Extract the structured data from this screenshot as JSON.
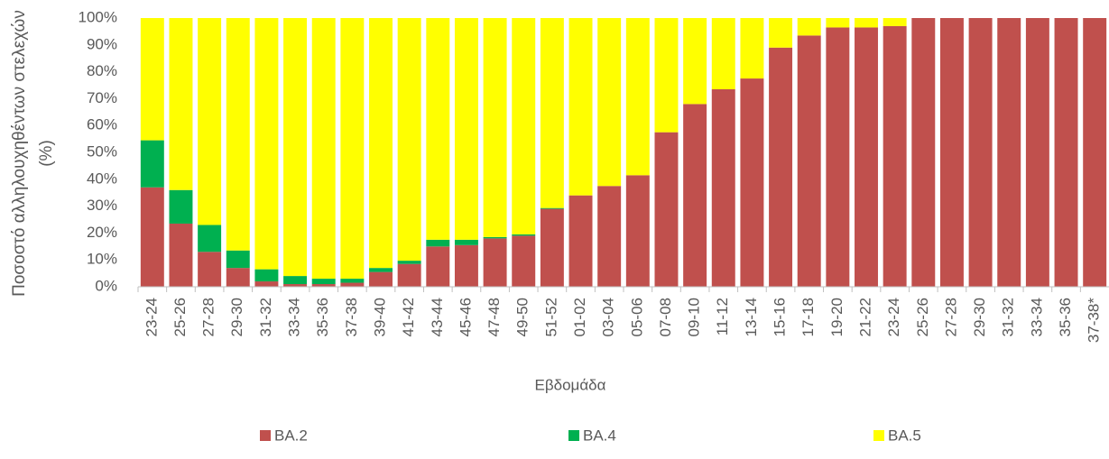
{
  "chart_data": {
    "type": "stacked_bar",
    "xlabel": "Εβδομάδα",
    "ylabel": [
      "Ποσοστό αλληλουχηθέντων στελεχών",
      "(%)"
    ],
    "categories": [
      "23-24",
      "25-26",
      "27-28",
      "29-30",
      "31-32",
      "33-34",
      "35-36",
      "37-38",
      "39-40",
      "41-42",
      "43-44",
      "45-46",
      "47-48",
      "49-50",
      "51-52",
      "01-02",
      "03-04",
      "05-06",
      "07-08",
      "09-10",
      "11-12",
      "13-14",
      "15-16",
      "17-18",
      "19-20",
      "21-22",
      "23-24",
      "25-26",
      "27-28",
      "29-30",
      "31-32",
      "33-34",
      "35-36",
      "37-38*"
    ],
    "series": [
      {
        "name": "BA.2",
        "color": "#c0504d",
        "values": [
          37,
          23.5,
          13,
          7,
          2,
          1,
          1,
          1.5,
          5.5,
          8.5,
          15,
          15.5,
          18,
          19,
          29,
          34,
          37.5,
          41.5,
          57.5,
          68,
          73.5,
          77.5,
          89,
          93.5,
          96.5,
          96.5,
          97,
          100,
          100,
          100,
          100,
          100,
          100,
          100
        ]
      },
      {
        "name": "BA.4",
        "color": "#00b050",
        "values": [
          17.5,
          12.5,
          10,
          6.5,
          4.5,
          3,
          2,
          1.5,
          1.5,
          1.2,
          2.5,
          2,
          0.5,
          0.5,
          0.3,
          0,
          0,
          0,
          0,
          0,
          0,
          0,
          0,
          0,
          0,
          0,
          0,
          0,
          0,
          0,
          0,
          0,
          0,
          0
        ]
      },
      {
        "name": "BA.5",
        "color": "#ffff00",
        "values": [
          45.5,
          64,
          77,
          86.5,
          93.5,
          96,
          97,
          97,
          93,
          90.3,
          82.5,
          82.5,
          81.5,
          80.5,
          70.7,
          66,
          62.5,
          58.5,
          42.5,
          32,
          26.5,
          22.5,
          11,
          6.5,
          3.5,
          3.5,
          3,
          0,
          0,
          0,
          0,
          0,
          0,
          0
        ]
      }
    ],
    "ylim": [
      0,
      100
    ],
    "yticks": [
      {
        "value": 0,
        "label": "0%"
      },
      {
        "value": 10,
        "label": "10%"
      },
      {
        "value": 20,
        "label": "20%"
      },
      {
        "value": 30,
        "label": "30%"
      },
      {
        "value": 40,
        "label": "40%"
      },
      {
        "value": 50,
        "label": "50%"
      },
      {
        "value": 60,
        "label": "60%"
      },
      {
        "value": 70,
        "label": "70%"
      },
      {
        "value": 80,
        "label": "80%"
      },
      {
        "value": 90,
        "label": "90%"
      },
      {
        "value": 100,
        "label": "100%"
      }
    ],
    "legend": "bottom"
  }
}
